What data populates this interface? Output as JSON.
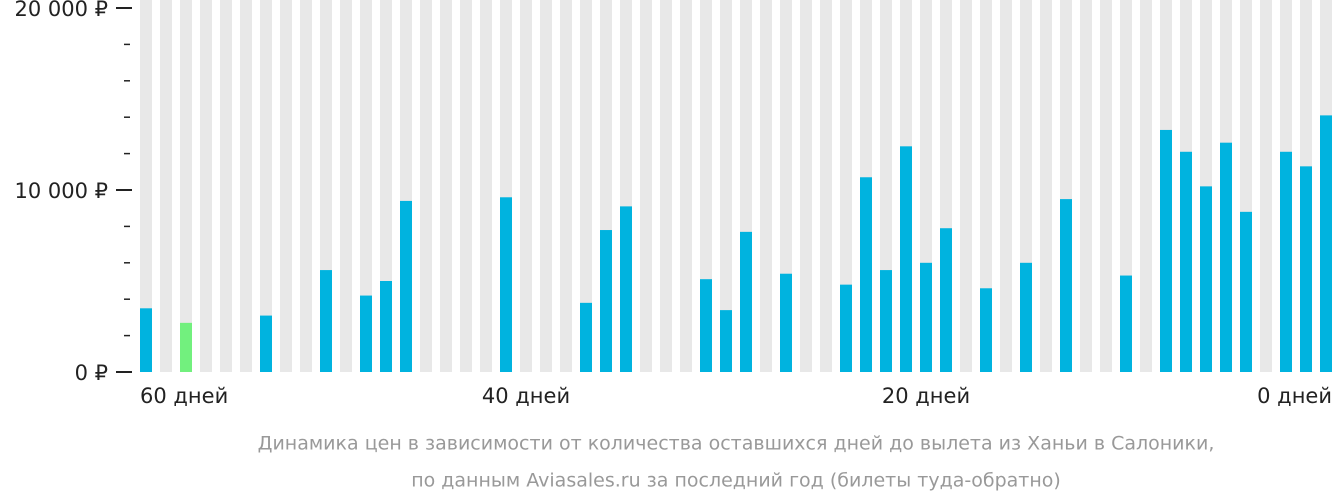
{
  "chart_data": {
    "type": "bar",
    "categories": [
      "60 дней",
      null,
      null,
      null,
      null,
      null,
      null,
      null,
      null,
      null,
      null,
      null,
      null,
      null,
      null,
      null,
      null,
      null,
      null,
      "40 дней",
      null,
      null,
      null,
      null,
      null,
      null,
      null,
      null,
      null,
      null,
      null,
      null,
      null,
      null,
      null,
      null,
      null,
      null,
      null,
      "20 дней",
      null,
      null,
      null,
      null,
      null,
      null,
      null,
      null,
      null,
      null,
      null,
      null,
      null,
      null,
      null,
      null,
      null,
      null,
      null,
      "0 дней"
    ],
    "values": [
      3500,
      null,
      2700,
      null,
      null,
      null,
      3100,
      null,
      null,
      5600,
      null,
      4200,
      5000,
      9400,
      null,
      null,
      null,
      null,
      9600,
      null,
      null,
      null,
      3800,
      7800,
      9100,
      null,
      null,
      null,
      5100,
      3400,
      7700,
      null,
      5400,
      null,
      null,
      4800,
      10700,
      5600,
      12400,
      6000,
      7900,
      null,
      4600,
      null,
      6000,
      null,
      9500,
      null,
      null,
      5300,
      null,
      13300,
      12100,
      10200,
      12600,
      8800,
      null,
      12100,
      11300,
      14100
    ],
    "color": "#00b3df",
    "min_color": "#72f07e",
    "ylim": [
      0,
      20000
    ],
    "yticks": [
      {
        "value": 0,
        "label": "0 ₽"
      },
      {
        "value": 10000,
        "label": "10 000 ₽"
      },
      {
        "value": 20000,
        "label": "20 000 ₽"
      }
    ],
    "yticks_minor": [
      2000,
      4000,
      6000,
      8000,
      12000,
      14000,
      16000,
      18000
    ],
    "caption": [
      "Динамика цен в зависимости от количества оставшихся дней до вылета из Ханьи в Салоники,",
      "по данным Aviasales.ru за последний год (билеты туда-обратно)"
    ]
  }
}
